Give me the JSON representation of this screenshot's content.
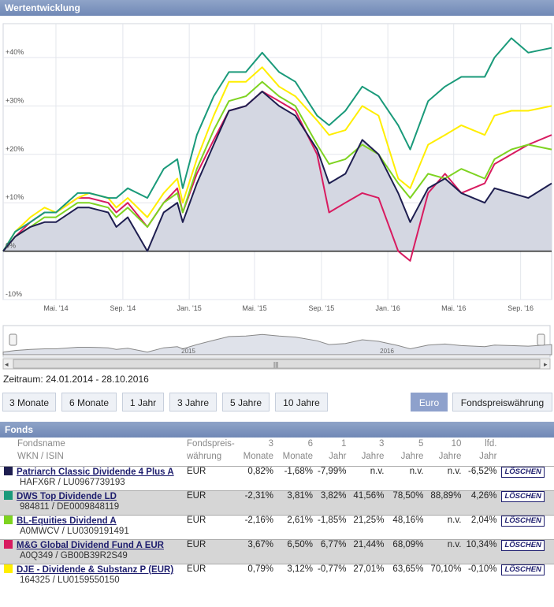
{
  "header": {
    "title": "Wertentwicklung"
  },
  "chart_data": {
    "type": "line",
    "title": "",
    "xlabel": "",
    "ylabel": "",
    "ylim": [
      -10,
      47
    ],
    "y_ticks": [
      "+40%",
      "+30%",
      "+20%",
      "+10%",
      "0%",
      "-10%"
    ],
    "y_tick_values": [
      40,
      30,
      20,
      10,
      0,
      -10
    ],
    "x_ticks": [
      "Mai. '14",
      "Sep. '14",
      "Jan. '15",
      "Mai. '15",
      "Sep. '15",
      "Jan. '16",
      "Mai. '16",
      "Sep. '16"
    ],
    "x_tick_dates": [
      "2014-05-01",
      "2014-09-01",
      "2015-01-01",
      "2015-05-01",
      "2015-09-01",
      "2016-01-01",
      "2016-05-01",
      "2016-09-01"
    ],
    "x_range": [
      "2014-01-24",
      "2016-10-28"
    ],
    "grid": true,
    "navigator_labels": [
      "2015",
      "2016"
    ],
    "series": [
      {
        "name": "Patriarch Classic Dividende 4 Plus A",
        "color": "#1e1e50",
        "x": [
          "2014-01-24",
          "2014-02-15",
          "2014-03-15",
          "2014-04-10",
          "2014-05-01",
          "2014-06-10",
          "2014-07-01",
          "2014-08-05",
          "2014-08-20",
          "2014-09-10",
          "2014-10-16",
          "2014-11-15",
          "2014-12-10",
          "2014-12-20",
          "2015-01-15",
          "2015-02-15",
          "2015-03-15",
          "2015-04-15",
          "2015-05-15",
          "2015-06-15",
          "2015-07-15",
          "2015-08-24",
          "2015-09-15",
          "2015-10-15",
          "2015-11-15",
          "2015-12-15",
          "2016-01-20",
          "2016-02-11",
          "2016-03-15",
          "2016-04-15",
          "2016-05-15",
          "2016-06-27",
          "2016-07-15",
          "2016-08-15",
          "2016-09-15",
          "2016-10-28"
        ],
        "values": [
          0,
          3,
          5,
          6,
          6,
          9,
          9,
          8,
          5,
          7,
          0,
          8,
          10,
          6,
          14,
          22,
          29,
          30,
          33,
          30,
          28,
          21,
          14,
          16,
          23,
          20,
          12,
          6,
          13,
          15,
          12,
          10,
          13,
          12,
          11,
          14
        ]
      },
      {
        "name": "DWS Top Dividende LD",
        "color": "#1a9a7a",
        "x": [
          "2014-01-24",
          "2014-02-15",
          "2014-03-15",
          "2014-04-10",
          "2014-05-01",
          "2014-06-10",
          "2014-07-01",
          "2014-08-05",
          "2014-08-20",
          "2014-09-10",
          "2014-10-16",
          "2014-11-15",
          "2014-12-10",
          "2014-12-20",
          "2015-01-15",
          "2015-02-15",
          "2015-03-15",
          "2015-04-15",
          "2015-05-15",
          "2015-06-15",
          "2015-07-15",
          "2015-08-24",
          "2015-09-15",
          "2015-10-15",
          "2015-11-15",
          "2015-12-15",
          "2016-01-20",
          "2016-02-11",
          "2016-03-15",
          "2016-04-15",
          "2016-05-15",
          "2016-06-27",
          "2016-07-15",
          "2016-08-15",
          "2016-09-15",
          "2016-10-28"
        ],
        "values": [
          0,
          4,
          6,
          8,
          8,
          12,
          12,
          11,
          11,
          13,
          11,
          17,
          19,
          13,
          24,
          32,
          37,
          37,
          41,
          37,
          35,
          28,
          26,
          29,
          34,
          32,
          26,
          21,
          31,
          34,
          36,
          36,
          40,
          44,
          41,
          42
        ]
      },
      {
        "name": "BL-Equities Dividend A",
        "color": "#7ed321",
        "x": [
          "2014-01-24",
          "2014-02-15",
          "2014-03-15",
          "2014-04-10",
          "2014-05-01",
          "2014-06-10",
          "2014-07-01",
          "2014-08-05",
          "2014-08-20",
          "2014-09-10",
          "2014-10-16",
          "2014-11-15",
          "2014-12-10",
          "2014-12-20",
          "2015-01-15",
          "2015-02-15",
          "2015-03-15",
          "2015-04-15",
          "2015-05-15",
          "2015-06-15",
          "2015-07-15",
          "2015-08-24",
          "2015-09-15",
          "2015-10-15",
          "2015-11-15",
          "2015-12-15",
          "2016-01-20",
          "2016-02-11",
          "2016-03-15",
          "2016-04-15",
          "2016-05-15",
          "2016-06-27",
          "2016-07-15",
          "2016-08-15",
          "2016-09-15",
          "2016-10-28"
        ],
        "values": [
          0,
          3,
          5,
          7,
          7,
          10,
          10,
          9,
          7,
          9,
          5,
          10,
          12,
          8,
          17,
          25,
          31,
          32,
          35,
          32,
          30,
          22,
          18,
          19,
          22,
          20,
          14,
          11,
          16,
          15,
          17,
          15,
          19,
          21,
          22,
          21
        ]
      },
      {
        "name": "M&G Global Dividend Fund A EUR",
        "color": "#d81b60",
        "x": [
          "2014-01-24",
          "2014-02-15",
          "2014-03-15",
          "2014-04-10",
          "2014-05-01",
          "2014-06-10",
          "2014-07-01",
          "2014-08-05",
          "2014-08-20",
          "2014-09-10",
          "2014-10-16",
          "2014-11-15",
          "2014-12-10",
          "2014-12-20",
          "2015-01-15",
          "2015-02-15",
          "2015-03-15",
          "2015-04-15",
          "2015-05-15",
          "2015-06-15",
          "2015-07-15",
          "2015-08-24",
          "2015-09-15",
          "2015-10-15",
          "2015-11-15",
          "2015-12-15",
          "2016-01-20",
          "2016-02-11",
          "2016-03-15",
          "2016-04-15",
          "2016-05-15",
          "2016-06-27",
          "2016-07-15",
          "2016-08-15",
          "2016-09-15",
          "2016-10-28"
        ],
        "values": [
          0,
          3,
          6,
          8,
          8,
          11,
          11,
          10,
          8,
          10,
          5,
          10,
          13,
          8,
          16,
          23,
          29,
          30,
          33,
          31,
          29,
          20,
          8,
          10,
          12,
          11,
          0,
          -2,
          12,
          16,
          12,
          14,
          18,
          20,
          22,
          24
        ]
      },
      {
        "name": "DJE - Dividende & Substanz P (EUR)",
        "color": "#ffee00",
        "x": [
          "2014-01-24",
          "2014-02-15",
          "2014-03-15",
          "2014-04-10",
          "2014-05-01",
          "2014-06-10",
          "2014-07-01",
          "2014-08-05",
          "2014-08-20",
          "2014-09-10",
          "2014-10-16",
          "2014-11-15",
          "2014-12-10",
          "2014-12-20",
          "2015-01-15",
          "2015-02-15",
          "2015-03-15",
          "2015-04-15",
          "2015-05-15",
          "2015-06-15",
          "2015-07-15",
          "2015-08-24",
          "2015-09-15",
          "2015-10-15",
          "2015-11-15",
          "2015-12-15",
          "2016-01-20",
          "2016-02-11",
          "2016-03-15",
          "2016-04-15",
          "2016-05-15",
          "2016-06-27",
          "2016-07-15",
          "2016-08-15",
          "2016-09-15",
          "2016-10-28"
        ],
        "values": [
          0,
          4,
          7,
          9,
          8,
          11,
          12,
          11,
          9,
          11,
          7,
          12,
          15,
          10,
          19,
          28,
          35,
          35,
          38,
          34,
          32,
          27,
          24,
          25,
          30,
          28,
          15,
          13,
          22,
          24,
          26,
          24,
          28,
          29,
          29,
          30
        ]
      }
    ]
  },
  "range": {
    "label": "Zeitraum: 24.01.2014 - 28.10.2016"
  },
  "buttons": [
    {
      "label": "3 Monate"
    },
    {
      "label": "6 Monate"
    },
    {
      "label": "1 Jahr"
    },
    {
      "label": "3 Jahre"
    },
    {
      "label": "5 Jahre"
    },
    {
      "label": "10 Jahre"
    },
    {
      "label": "Euro"
    },
    {
      "label": "Fondspreiswährung"
    }
  ],
  "funds": {
    "title": "Fonds",
    "head1": [
      "Fondsname",
      "Fondspreis-",
      "3",
      "6",
      "1",
      "3",
      "5",
      "10",
      "lfd."
    ],
    "head2": [
      "WKN / ISIN",
      "währung",
      "Monate",
      "Monate",
      "Jahr",
      "Jahre",
      "Jahre",
      "Jahre",
      "Jahr"
    ],
    "delete_label": "LÖSCHEN",
    "rows": [
      {
        "name": "Patriarch Classic Dividende 4 Plus A",
        "id": "HAFX6R / LU0967739193",
        "currency": "EUR",
        "color": "#1e1e50",
        "perf": [
          "0,82%",
          "-1,68%",
          "-7,99%",
          "n.v.",
          "n.v.",
          "n.v.",
          "-6,52%"
        ]
      },
      {
        "name": "DWS Top Dividende LD",
        "id": "984811 / DE0009848119",
        "currency": "EUR",
        "color": "#1a9a7a",
        "perf": [
          "-2,31%",
          "3,81%",
          "3,82%",
          "41,56%",
          "78,50%",
          "88,89%",
          "4,26%"
        ]
      },
      {
        "name": "BL-Equities Dividend A",
        "id": "A0MWCV / LU0309191491",
        "currency": "EUR",
        "color": "#7ed321",
        "perf": [
          "-2,16%",
          "2,61%",
          "-1,85%",
          "21,25%",
          "48,16%",
          "n.v.",
          "2,04%"
        ]
      },
      {
        "name": "M&G Global Dividend Fund A EUR",
        "id": "A0Q349 / GB00B39R2S49",
        "currency": "EUR",
        "color": "#d81b60",
        "perf": [
          "3,67%",
          "6,50%",
          "6,77%",
          "21,44%",
          "68,09%",
          "n.v.",
          "10,34%"
        ]
      },
      {
        "name": "DJE - Dividende & Substanz P (EUR)",
        "id": "164325 / LU0159550150",
        "currency": "EUR",
        "color": "#ffee00",
        "perf": [
          "0,79%",
          "3,12%",
          "-0,77%",
          "27,01%",
          "63,65%",
          "70,10%",
          "-0,10%"
        ]
      }
    ]
  }
}
